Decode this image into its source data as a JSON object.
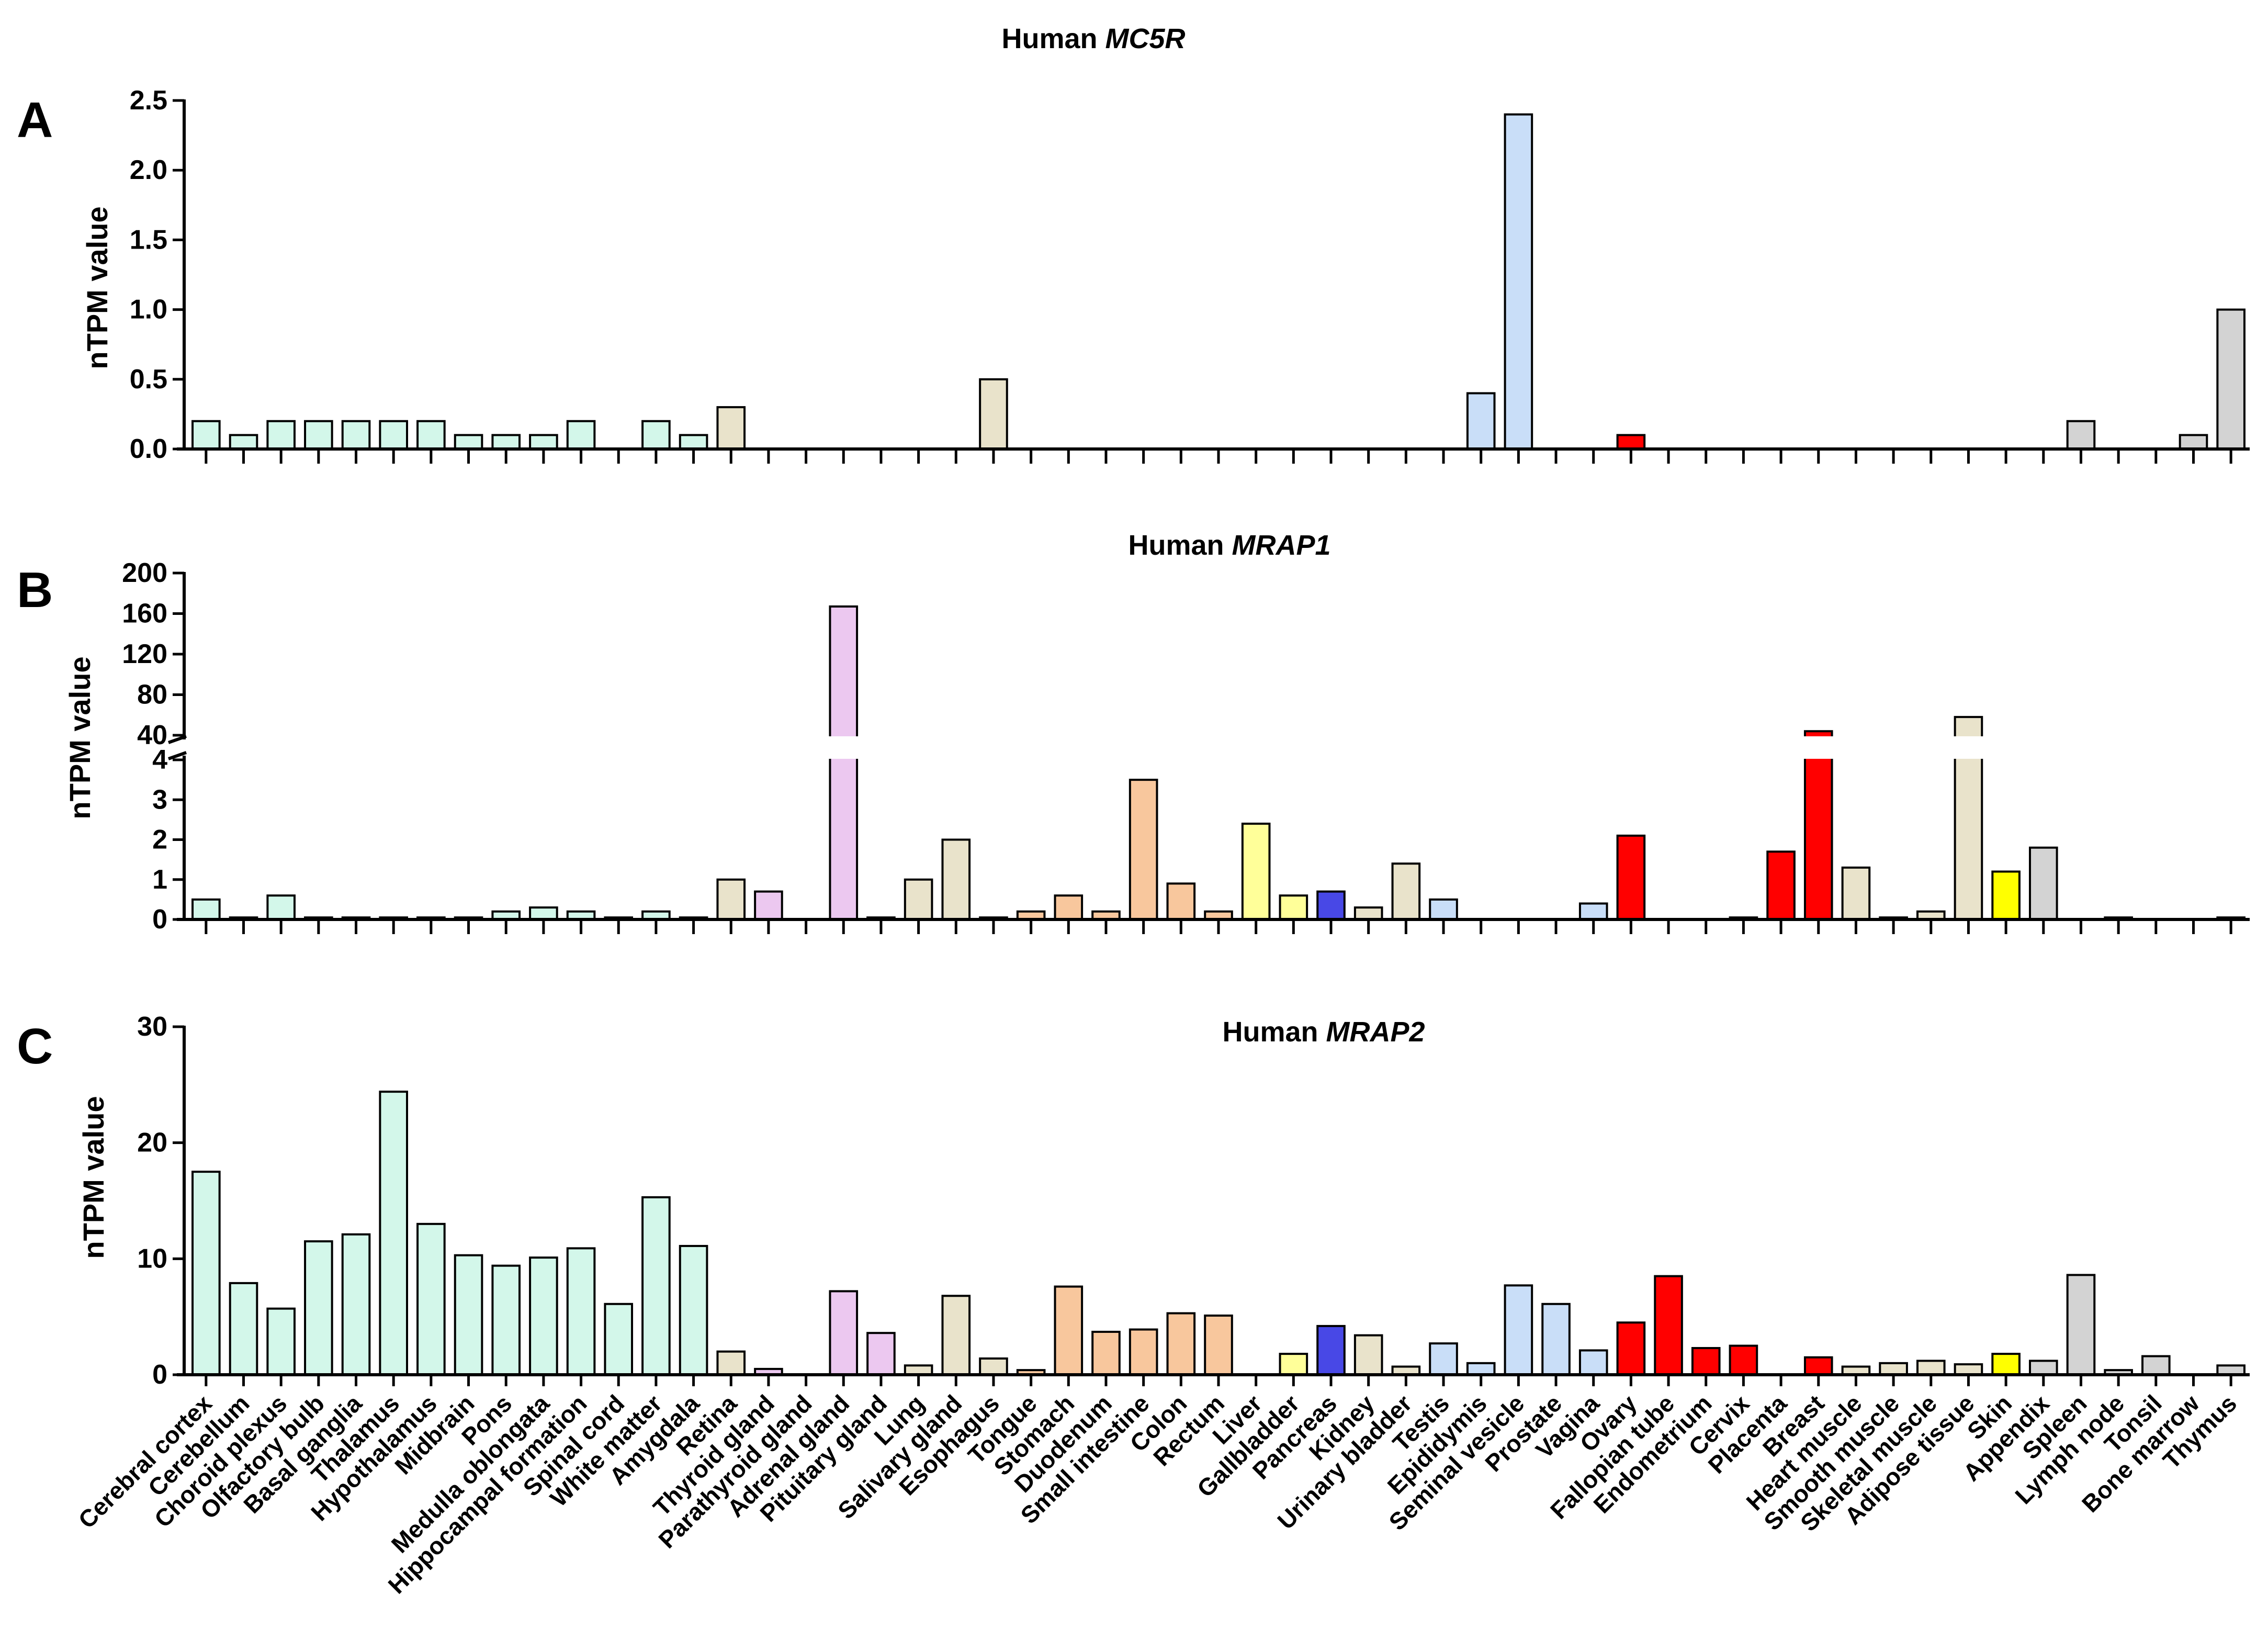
{
  "figure": {
    "background": "#ffffff"
  },
  "tissues": [
    "Cerebral cortex",
    "Cerebellum",
    "Choroid plexus",
    "Olfactory bulb",
    "Basal ganglia",
    "Thalamus",
    "Hypothalamus",
    "Midbrain",
    "Pons",
    "Medulla oblongata",
    "Hippocampal formation",
    "Spinal cord",
    "White matter",
    "Amygdala",
    "Retina",
    "Thyroid gland",
    "Parathyroid gland",
    "Adrenal gland",
    "Pituitary gland",
    "Lung",
    "Salivary gland",
    "Esophagus",
    "Tongue",
    "Stomach",
    "Duodenum",
    "Small intestine",
    "Colon",
    "Rectum",
    "Liver",
    "Gallbladder",
    "Pancreas",
    "Kidney",
    "Urinary bladder",
    "Testis",
    "Epididymis",
    "Seminal vesicle",
    "Prostate",
    "Vagina",
    "Ovary",
    "Fallopian tube",
    "Endometrium",
    "Cervix",
    "Placenta",
    "Breast",
    "Heart muscle",
    "Smooth muscle",
    "Skeletal muscle",
    "Adipose tissue",
    "Skin",
    "Appendix",
    "Spleen",
    "Lymph node",
    "Tonsil",
    "Bone marrow",
    "Thymus"
  ],
  "colors": [
    "#d3f7ea",
    "#d3f7ea",
    "#d3f7ea",
    "#d3f7ea",
    "#d3f7ea",
    "#d3f7ea",
    "#d3f7ea",
    "#d3f7ea",
    "#d3f7ea",
    "#d3f7ea",
    "#d3f7ea",
    "#d3f7ea",
    "#d3f7ea",
    "#d3f7ea",
    "#e9e3cb",
    "#ecc8f0",
    "#ecc8f0",
    "#ecc8f0",
    "#ecc8f0",
    "#e9e3cb",
    "#e9e3cb",
    "#e9e3cb",
    "#f8c79d",
    "#f8c79d",
    "#f8c79d",
    "#f8c79d",
    "#f8c79d",
    "#f8c79d",
    "#ffff99",
    "#ffff99",
    "#4848e6",
    "#e9e3cb",
    "#e9e3cb",
    "#c9def8",
    "#c9def8",
    "#c9def8",
    "#c9def8",
    "#c9def8",
    "#ff0000",
    "#ff0000",
    "#ff0000",
    "#ff0000",
    "#ff0000",
    "#ff0000",
    "#e9e3cb",
    "#e9e3cb",
    "#e9e3cb",
    "#e9e3cb",
    "#ffff00",
    "#d3d3d3",
    "#d3d3d3",
    "#d3d3d3",
    "#d3d3d3",
    "#d3d3d3",
    "#d3d3d3"
  ],
  "chart_data": [
    {
      "type": "bar",
      "panel": "A",
      "title_prefix": "Human ",
      "title_gene": "MC5R",
      "ylabel": "nTPM value",
      "ylim": [
        0,
        2.5
      ],
      "yticks": [
        "0.0",
        "0.5",
        "1.0",
        "1.5",
        "2.0",
        "2.5"
      ],
      "values": [
        0.2,
        0.1,
        0.2,
        0.2,
        0.2,
        0.2,
        0.2,
        0.1,
        0.1,
        0.1,
        0.2,
        0,
        0.2,
        0.1,
        0.3,
        0,
        0,
        0,
        0,
        0,
        0,
        0.5,
        0,
        0,
        0,
        0,
        0,
        0,
        0,
        0,
        0,
        0,
        0,
        0,
        0.4,
        2.4,
        0,
        0,
        0.1,
        0,
        0,
        0,
        0,
        0,
        0,
        0,
        0,
        0,
        0,
        0,
        0.2,
        0,
        0,
        0.1,
        1.0
      ]
    },
    {
      "type": "bar",
      "panel": "B",
      "title_prefix": "Human ",
      "title_gene": "MRAP1",
      "ylabel": "nTPM value",
      "axis_break": true,
      "lower_ylim": [
        0,
        4
      ],
      "upper_ylim": [
        40,
        200
      ],
      "yticks_lower": [
        "0",
        "1",
        "2",
        "3",
        "4"
      ],
      "yticks_upper": [
        "40",
        "80",
        "120",
        "160",
        "200"
      ],
      "values": [
        0.5,
        0.05,
        0.6,
        0.05,
        0.05,
        0.05,
        0.05,
        0.05,
        0.2,
        0.3,
        0.2,
        0.05,
        0.2,
        0.05,
        1.0,
        0.7,
        0,
        167,
        0.05,
        1.0,
        2.0,
        0.05,
        0.2,
        0.6,
        0.2,
        3.5,
        0.9,
        0.2,
        2.4,
        0.6,
        0.7,
        0.3,
        1.4,
        0.5,
        0,
        0,
        0,
        0.4,
        2.1,
        0,
        0,
        0.05,
        1.7,
        44,
        1.3,
        0.05,
        0.2,
        58,
        1.2,
        1.8,
        0,
        0.05,
        0,
        0,
        0.05
      ]
    },
    {
      "type": "bar",
      "panel": "C",
      "title_prefix": "Human ",
      "title_gene": "MRAP2",
      "ylabel": "nTPM value",
      "ylim": [
        0,
        30
      ],
      "yticks": [
        "0",
        "10",
        "20",
        "30"
      ],
      "values": [
        17.5,
        7.9,
        5.7,
        11.5,
        12.1,
        24.4,
        13.0,
        10.3,
        9.4,
        10.1,
        10.9,
        6.1,
        15.3,
        11.1,
        2.0,
        0.5,
        0,
        7.2,
        3.6,
        0.8,
        6.8,
        1.4,
        0.4,
        7.6,
        3.7,
        3.9,
        5.3,
        5.1,
        0,
        1.8,
        4.2,
        3.4,
        0.7,
        2.7,
        1.0,
        7.7,
        6.1,
        2.1,
        4.5,
        8.5,
        2.3,
        2.5,
        0,
        1.5,
        0.7,
        1.0,
        1.2,
        0.9,
        1.8,
        1.2,
        8.6,
        0.4,
        1.6,
        0,
        0.8
      ]
    }
  ]
}
